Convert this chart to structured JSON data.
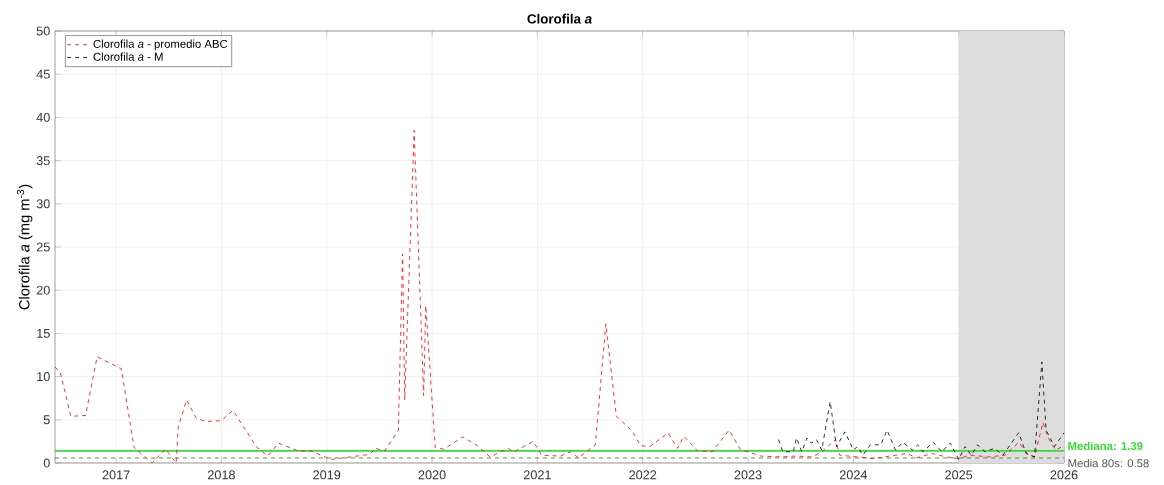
{
  "chart_data": {
    "type": "line",
    "title": "Clorofila *a*",
    "ylabel": "Clorofila *a* (mg m$^{-3}$)",
    "xlim": [
      2016.42,
      2026
    ],
    "xticks": [
      2017,
      2018,
      2019,
      2020,
      2021,
      2022,
      2023,
      2024,
      2025,
      2026
    ],
    "ylim": [
      0,
      50
    ],
    "yticks": [
      0,
      5,
      10,
      15,
      20,
      25,
      30,
      35,
      40,
      45,
      50
    ],
    "grid": true,
    "legend": "top left",
    "line_style": "dashed",
    "marker": "none",
    "series": [
      {
        "name": "Clorofila *a* - promedio ABC",
        "color": "#ff0000",
        "x": [
          2016.42,
          2016.47,
          2016.57,
          2016.71,
          2016.82,
          2017.05,
          2017.17,
          2017.34,
          2017.47,
          2017.57,
          2017.59,
          2017.67,
          2017.76,
          2017.85,
          2018.0,
          2018.11,
          2018.33,
          2018.44,
          2018.54,
          2018.73,
          2018.85,
          2019.04,
          2019.41,
          2019.46,
          2019.55,
          2019.68,
          2019.72,
          2019.74,
          2019.83,
          2019.92,
          2019.94,
          2020.03,
          2020.11,
          2020.29,
          2020.42,
          2020.55,
          2020.72,
          2020.78,
          2020.96,
          2021.04,
          2021.22,
          2021.31,
          2021.39,
          2021.55,
          2021.65,
          2021.75,
          2021.9,
          2021.98,
          2022.07,
          2022.24,
          2022.33,
          2022.39,
          2022.52,
          2022.66,
          2022.82,
          2022.93,
          2023.0,
          2023.12,
          2023.31,
          2023.46,
          2023.61,
          2023.7,
          2023.83,
          2023.87,
          2024.04,
          2024.19,
          2024.35,
          2024.51,
          2024.6,
          2024.75,
          2024.88,
          2025.0,
          2025.12,
          2025.28,
          2025.44,
          2025.57,
          2025.65,
          2025.72,
          2025.8,
          2025.85,
          2025.92,
          2026.0
        ],
        "values": [
          11.1,
          10.5,
          5.4,
          5.5,
          12.3,
          10.9,
          1.8,
          0,
          1.6,
          0,
          4.2,
          7.3,
          5.2,
          4.8,
          4.9,
          6.1,
          1.9,
          0.8,
          2.3,
          1.4,
          1.4,
          0.4,
          1.0,
          1.7,
          1.4,
          3.8,
          24.2,
          7.3,
          38.5,
          7.8,
          18.2,
          1.8,
          1.6,
          3.0,
          2.1,
          0.7,
          1.7,
          1.3,
          2.5,
          0.9,
          0.8,
          1.3,
          0.6,
          2.1,
          16.1,
          5.4,
          3.7,
          2.0,
          1.9,
          3.5,
          1.7,
          3.1,
          1.4,
          1.3,
          3.8,
          1.5,
          1.3,
          0.8,
          0.7,
          0.8,
          0.7,
          1.3,
          2.7,
          0.9,
          0.7,
          0.5,
          0.8,
          1.1,
          0.6,
          1.1,
          0.7,
          0.5,
          0.9,
          0.7,
          0.9,
          2.4,
          1.1,
          0.7,
          4.7,
          2.9,
          1.5,
          2.0
        ]
      },
      {
        "name": "Clorofila *a* - M",
        "color": "#000000",
        "x": [
          2023.29,
          2023.33,
          2023.43,
          2023.46,
          2023.51,
          2023.56,
          2023.6,
          2023.65,
          2023.7,
          2023.78,
          2023.84,
          2023.92,
          2024.0,
          2024.04,
          2024.09,
          2024.16,
          2024.26,
          2024.32,
          2024.4,
          2024.47,
          2024.56,
          2024.61,
          2024.66,
          2024.76,
          2024.84,
          2024.92,
          2025.0,
          2025.06,
          2025.12,
          2025.18,
          2025.25,
          2025.34,
          2025.42,
          2025.57,
          2025.64,
          2025.72,
          2025.79,
          2025.83,
          2025.91,
          2026.0
        ],
        "values": [
          2.7,
          1.3,
          1.3,
          2.9,
          1.3,
          2.9,
          2.3,
          2.7,
          1.5,
          7.1,
          1.9,
          3.6,
          1.5,
          1.9,
          0.9,
          2.1,
          2.1,
          3.8,
          1.5,
          2.4,
          1.5,
          2.1,
          1.3,
          2.4,
          1.3,
          2.3,
          0.4,
          1.9,
          0.9,
          2.1,
          1.3,
          1.7,
          0.9,
          3.5,
          1.1,
          0.7,
          11.7,
          3.8,
          1.9,
          3.5
        ]
      }
    ],
    "ref_lines": [
      {
        "axis": "y",
        "value": 1.39,
        "label": "**Mediana: 1.39**",
        "color": "#33dd33",
        "line_style": "solid"
      },
      {
        "axis": "y",
        "value": 0.58,
        "label": "Media 80s: 0.58",
        "color": "#555555",
        "line_style": "dashed"
      }
    ],
    "bands": [
      {
        "axis": "x",
        "from": 2025,
        "to": 2026,
        "color": "#dddddd"
      }
    ]
  }
}
